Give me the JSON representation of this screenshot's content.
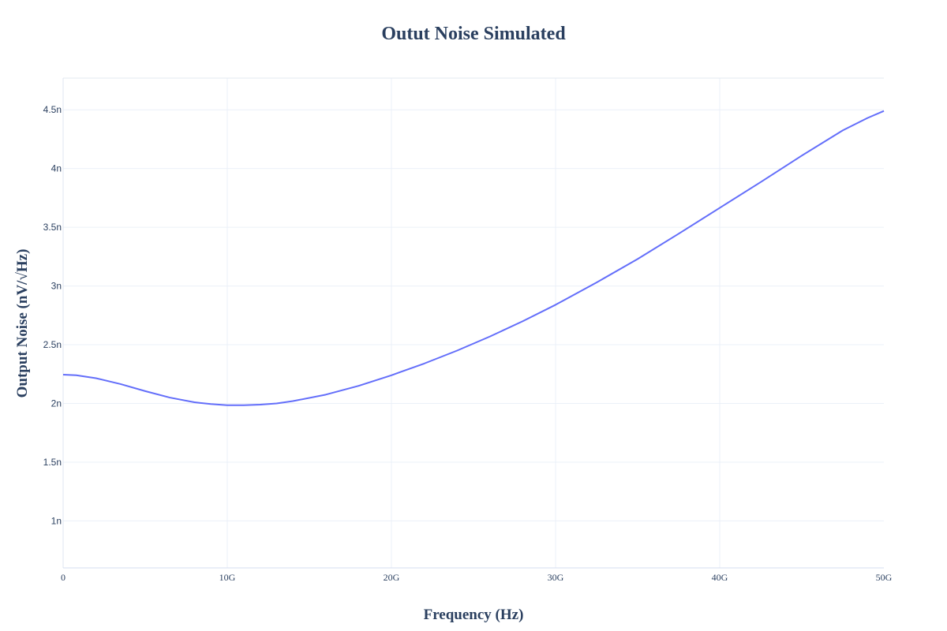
{
  "chart_data": {
    "type": "line",
    "title": "Outut Noise Simulated",
    "xlabel": "Frequency (Hz)",
    "ylabel": "Output Noise (nV/√Hz)",
    "xlim": [
      0,
      50000000000
    ],
    "ylim": [
      6e-10,
      4.77e-09
    ],
    "x_ticks": [
      {
        "value": 0,
        "label": "0"
      },
      {
        "value": 10000000000,
        "label": "10G"
      },
      {
        "value": 20000000000,
        "label": "20G"
      },
      {
        "value": 30000000000,
        "label": "30G"
      },
      {
        "value": 40000000000,
        "label": "40G"
      },
      {
        "value": 50000000000,
        "label": "50G"
      }
    ],
    "y_ticks": [
      {
        "value": 1e-09,
        "label": "1n"
      },
      {
        "value": 1.5e-09,
        "label": "1.5n"
      },
      {
        "value": 2e-09,
        "label": "2n"
      },
      {
        "value": 2.5e-09,
        "label": "2.5n"
      },
      {
        "value": 3e-09,
        "label": "3n"
      },
      {
        "value": 3.5e-09,
        "label": "3.5n"
      },
      {
        "value": 4e-09,
        "label": "4n"
      },
      {
        "value": 4.5e-09,
        "label": "4.5n"
      }
    ],
    "grid": true,
    "legend": "none",
    "line_color": "#636efa",
    "series": [
      {
        "x": [
          0,
          800000000,
          2000000000,
          3500000000,
          5000000000,
          6500000000,
          8000000000,
          9000000000,
          10000000000,
          11000000000,
          12000000000,
          13000000000,
          14000000000,
          16000000000,
          18000000000,
          20000000000,
          22000000000,
          24000000000,
          26000000000,
          28000000000,
          30000000000,
          32500000000,
          35000000000,
          37500000000,
          40000000000,
          42500000000,
          45000000000,
          47500000000,
          49000000000,
          50000000000
        ],
        "y": [
          2.245e-09,
          2.24e-09,
          2.215e-09,
          2.165e-09,
          2.105e-09,
          2.05e-09,
          2.01e-09,
          1.995e-09,
          1.985e-09,
          1.985e-09,
          1.99e-09,
          2e-09,
          2.02e-09,
          2.075e-09,
          2.15e-09,
          2.24e-09,
          2.34e-09,
          2.45e-09,
          2.57e-09,
          2.7e-09,
          2.84e-09,
          3.03e-09,
          3.23e-09,
          3.445e-09,
          3.665e-09,
          3.885e-09,
          4.11e-09,
          4.325e-09,
          4.43e-09,
          4.49e-09
        ]
      }
    ]
  }
}
